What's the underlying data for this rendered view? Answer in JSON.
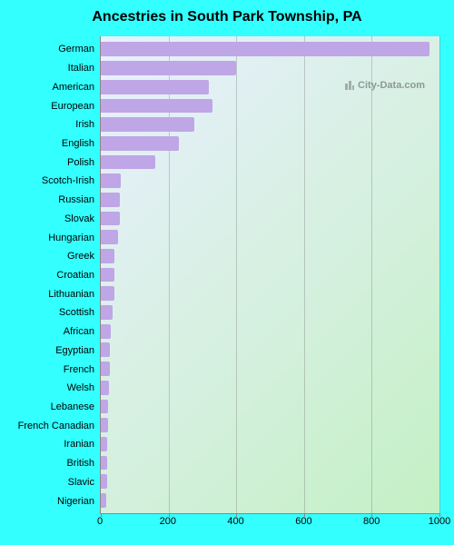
{
  "title": "Ancestries in South Park Township, PA",
  "title_fontsize": 16,
  "title_color": "#000000",
  "page_background": "#33ffff",
  "watermark_text": "City-Data.com",
  "chart": {
    "type": "bar-horizontal",
    "plot_bg_gradient_from": "#e9f0ff",
    "plot_bg_gradient_to": "#c4f0c4",
    "bar_color": "#bfa6e6",
    "grid_color": "rgba(120,120,120,0.35)",
    "axis_color": "#888888",
    "xlim": [
      0,
      1000
    ],
    "xtick_step": 200,
    "xticks": [
      0,
      200,
      400,
      600,
      800,
      1000
    ],
    "label_fontsize": 11,
    "categories": [
      "German",
      "Italian",
      "American",
      "European",
      "Irish",
      "English",
      "Polish",
      "Scotch-Irish",
      "Russian",
      "Slovak",
      "Hungarian",
      "Greek",
      "Croatian",
      "Lithuanian",
      "Scottish",
      "African",
      "Egyptian",
      "French",
      "Welsh",
      "Lebanese",
      "French Canadian",
      "Iranian",
      "British",
      "Slavic",
      "Nigerian"
    ],
    "values": [
      970,
      400,
      320,
      330,
      275,
      230,
      160,
      60,
      55,
      55,
      50,
      40,
      40,
      40,
      35,
      30,
      28,
      26,
      25,
      22,
      22,
      20,
      20,
      18,
      15
    ]
  }
}
